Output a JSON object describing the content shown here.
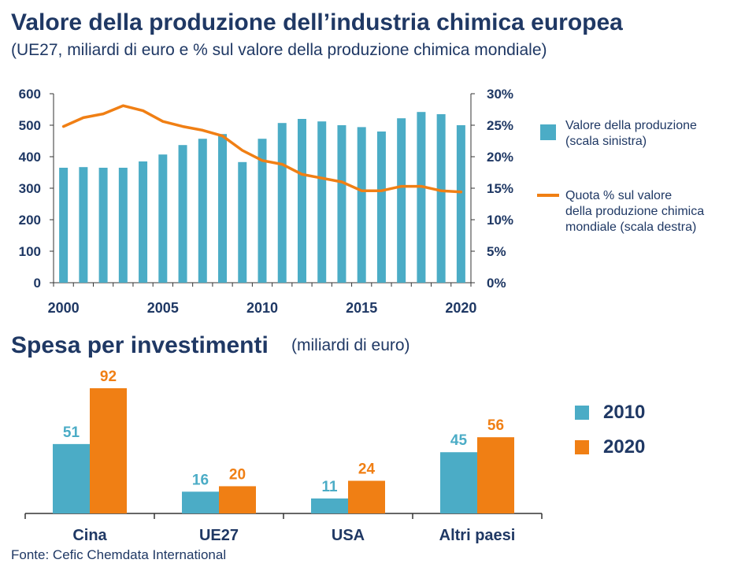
{
  "title": "Valore della produzione dell’industria chimica europea",
  "subtitle": "(UE27, miliardi di euro e % sul valore della produzione chimica mondiale)",
  "title2": "Spesa per investimenti",
  "subtitle2": "(miliardi di euro)",
  "source": "Fonte: Cefic Chemdata International",
  "colors": {
    "teal": "#4bacc6",
    "orange": "#f07f14",
    "text": "#1f3864",
    "axis": "#333333"
  },
  "chart_data": [
    {
      "type": "bar+line",
      "title": "Valore della produzione dell’industria chimica europea",
      "x": [
        2000,
        2001,
        2002,
        2003,
        2004,
        2005,
        2006,
        2007,
        2008,
        2009,
        2010,
        2011,
        2012,
        2013,
        2014,
        2015,
        2016,
        2017,
        2018,
        2019,
        2020
      ],
      "x_ticks": [
        "2000",
        "2005",
        "2010",
        "2015",
        "2020"
      ],
      "y_left_ticks": [
        "0",
        "100",
        "200",
        "300",
        "400",
        "500",
        "600"
      ],
      "y_right_ticks": [
        "0%",
        "5%",
        "10%",
        "15%",
        "20%",
        "25%",
        "30%"
      ],
      "ylim_left": [
        0,
        600
      ],
      "ylim_right": [
        0,
        30
      ],
      "series": [
        {
          "name": "Valore della produzione (scala sinistra)",
          "legend_lines": [
            "Valore della produzione",
            "(scala sinistra)"
          ],
          "type": "bar",
          "axis": "left",
          "color": "#4bacc6",
          "values": [
            365,
            367,
            365,
            365,
            385,
            407,
            437,
            457,
            472,
            383,
            457,
            507,
            520,
            512,
            500,
            494,
            480,
            522,
            542,
            535,
            500
          ]
        },
        {
          "name": "Quota % sul valore della produzione chimica mondiale (scala destra)",
          "legend_lines": [
            "Quota % sul valore",
            "della produzione  chimica",
            "mondiale  (scala destra)"
          ],
          "type": "line",
          "axis": "right",
          "color": "#f07f14",
          "values": [
            24.8,
            26.2,
            26.8,
            28.1,
            27.3,
            25.6,
            24.8,
            24.2,
            23.3,
            21.0,
            19.4,
            18.8,
            17.2,
            16.6,
            16.0,
            14.6,
            14.6,
            15.3,
            15.3,
            14.6,
            14.4
          ]
        }
      ]
    },
    {
      "type": "bar",
      "title": "Spesa per investimenti",
      "ylabel": "(miliardi di euro)",
      "categories": [
        "Cina",
        "UE27",
        "USA",
        "Altri paesi"
      ],
      "ylim": [
        0,
        92
      ],
      "series": [
        {
          "name": "2010",
          "color": "#4bacc6",
          "values": [
            51,
            16,
            11,
            45
          ]
        },
        {
          "name": "2020",
          "color": "#f07f14",
          "values": [
            92,
            20,
            24,
            56
          ]
        }
      ]
    }
  ]
}
